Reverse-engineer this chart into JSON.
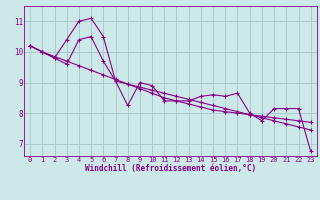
{
  "bg_color": "#cce8e8",
  "line_color": "#880088",
  "grid_color": "#aacccc",
  "xlabel": "Windchill (Refroidissement éolien,°C)",
  "xlim": [
    -0.5,
    23.5
  ],
  "ylim": [
    6.6,
    11.5
  ],
  "yticks": [
    7,
    8,
    9,
    10,
    11
  ],
  "xticks": [
    0,
    1,
    2,
    3,
    4,
    5,
    6,
    7,
    8,
    9,
    10,
    11,
    12,
    13,
    14,
    15,
    16,
    17,
    18,
    19,
    20,
    21,
    22,
    23
  ],
  "line1_x": [
    0,
    1,
    2,
    3,
    4,
    5,
    6,
    7,
    8,
    9,
    10,
    11,
    12,
    13,
    14,
    15,
    16,
    17,
    18,
    19,
    20,
    21,
    22,
    23
  ],
  "line1_y": [
    10.2,
    10.0,
    9.85,
    9.7,
    9.55,
    9.4,
    9.25,
    9.1,
    8.95,
    8.8,
    8.65,
    8.5,
    8.4,
    8.3,
    8.2,
    8.1,
    8.05,
    8.0,
    7.95,
    7.9,
    7.85,
    7.8,
    7.75,
    7.7
  ],
  "line2_x": [
    0,
    1,
    2,
    3,
    4,
    5,
    6,
    7,
    8,
    9,
    10,
    11,
    12,
    13,
    14,
    15,
    16,
    17,
    18,
    19,
    20,
    21,
    22,
    23
  ],
  "line2_y": [
    10.2,
    10.0,
    9.8,
    10.4,
    11.0,
    11.1,
    10.5,
    9.05,
    8.25,
    9.0,
    8.9,
    8.4,
    8.4,
    8.4,
    8.55,
    8.6,
    8.55,
    8.65,
    8.0,
    7.75,
    8.15,
    8.15,
    8.15,
    6.75
  ],
  "line3_x": [
    0,
    1,
    2,
    3,
    4,
    5,
    6,
    7,
    8,
    9,
    10,
    11,
    12,
    13,
    14,
    15,
    16,
    17,
    18,
    19,
    20,
    21,
    22,
    23
  ],
  "line3_y": [
    10.2,
    10.0,
    9.8,
    9.6,
    10.4,
    10.5,
    9.7,
    9.05,
    8.95,
    8.85,
    8.75,
    8.65,
    8.55,
    8.45,
    8.35,
    8.25,
    8.15,
    8.05,
    7.95,
    7.85,
    7.75,
    7.65,
    7.55,
    7.45
  ],
  "font_size_ticks": 5,
  "font_size_xlabel": 5.5
}
